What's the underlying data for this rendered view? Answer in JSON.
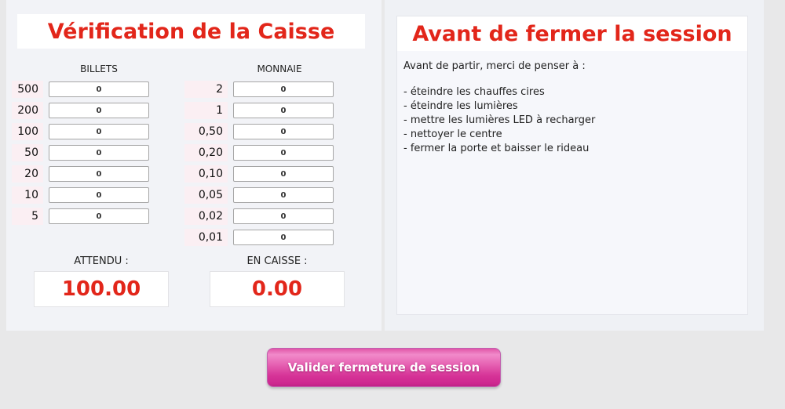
{
  "left_panel": {
    "title": "Vérification de la Caisse",
    "billets": {
      "header": "BILLETS",
      "rows": [
        {
          "label": "500",
          "value": "0"
        },
        {
          "label": "200",
          "value": "0"
        },
        {
          "label": "100",
          "value": "0"
        },
        {
          "label": "50",
          "value": "0"
        },
        {
          "label": "20",
          "value": "0"
        },
        {
          "label": "10",
          "value": "0"
        },
        {
          "label": "5",
          "value": "0"
        }
      ]
    },
    "monnaie": {
      "header": "MONNAIE",
      "rows": [
        {
          "label": "2",
          "value": "0"
        },
        {
          "label": "1",
          "value": "0"
        },
        {
          "label": "0,50",
          "value": "0"
        },
        {
          "label": "0,20",
          "value": "0"
        },
        {
          "label": "0,10",
          "value": "0"
        },
        {
          "label": "0,05",
          "value": "0"
        },
        {
          "label": "0,02",
          "value": "0"
        },
        {
          "label": "0,01",
          "value": "0"
        }
      ]
    },
    "attendu": {
      "label": "ATTENDU :",
      "value": "100.00"
    },
    "en_caisse": {
      "label": "EN CAISSE :",
      "value": "0.00"
    }
  },
  "right_panel": {
    "title": "Avant de fermer la session",
    "intro": "Avant de partir, merci de penser à :",
    "checklist": [
      {
        "text": "- éteindre les chauffes cires"
      },
      {
        "text": "- éteindre les lumières"
      },
      {
        "text": "- mettre les lumières LED à recharger"
      },
      {
        "text": "- nettoyer le centre"
      },
      {
        "text": "- fermer la porte et baisser le rideau"
      }
    ]
  },
  "footer": {
    "validate_button": "Valider fermeture de session"
  },
  "colors": {
    "accent_red": "#e2261a",
    "button_pink": "#d63397",
    "label_pink": "#fbeff3",
    "page_bg": "#e8e8e9"
  }
}
